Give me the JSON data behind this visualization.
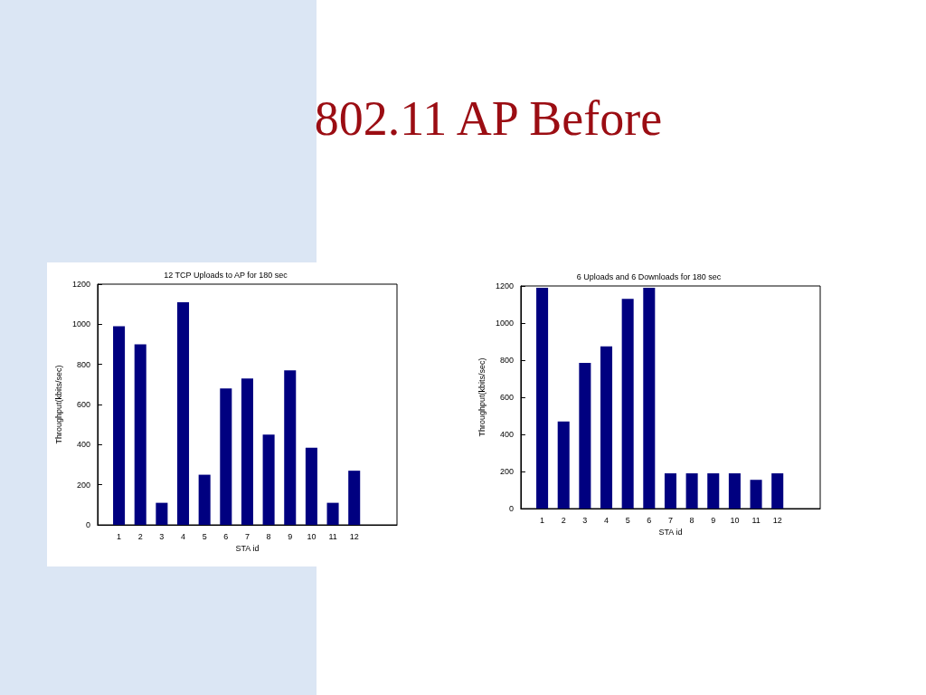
{
  "chart_data": [
    {
      "type": "other",
      "title": "802.11 AP Before"
    },
    {
      "type": "bar",
      "title": "12 TCP Uploads to AP for 180 sec",
      "xlabel": "STA id",
      "ylabel": "Throughput(kbits/sec)",
      "x": [
        1,
        2,
        3,
        4,
        5,
        6,
        7,
        8,
        9,
        10,
        11,
        12
      ],
      "values": [
        990,
        900,
        110,
        1110,
        250,
        680,
        730,
        450,
        770,
        385,
        110,
        270
      ],
      "color": "#000080",
      "xlim": [
        0,
        14
      ],
      "xticks": [
        1,
        2,
        3,
        4,
        5,
        6,
        7,
        8,
        9,
        10,
        11,
        12
      ],
      "ylim": [
        0,
        1200
      ],
      "yticks": [
        0,
        200,
        400,
        600,
        800,
        1000,
        1200
      ]
    },
    {
      "type": "bar",
      "title": "6 Uploads and 6 Downloads for 180 sec",
      "xlabel": "STA id",
      "ylabel": "Throughput(kbits/sec)",
      "x": [
        1,
        2,
        3,
        4,
        5,
        6,
        7,
        8,
        9,
        10,
        11,
        12
      ],
      "values": [
        1190,
        470,
        785,
        875,
        1130,
        1190,
        190,
        190,
        190,
        190,
        155,
        190
      ],
      "color": "#000080",
      "xlim": [
        0,
        14
      ],
      "xticks": [
        1,
        2,
        3,
        4,
        5,
        6,
        7,
        8,
        9,
        10,
        11,
        12
      ],
      "ylim": [
        0,
        1200
      ],
      "yticks": [
        0,
        200,
        400,
        600,
        800,
        1000,
        1200
      ]
    }
  ]
}
